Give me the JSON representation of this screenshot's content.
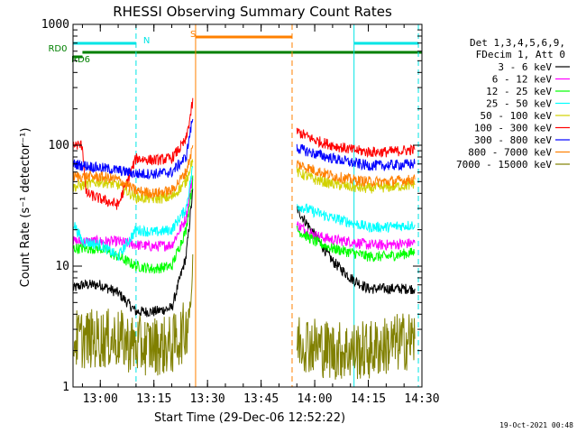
{
  "chart_data": {
    "type": "line",
    "title": "RHESSI Observing Summary Count Rates",
    "xlabel": "Start Time (29-Dec-06 12:52:22)",
    "ylabel": "Count Rate (s⁻¹ detector⁻¹)",
    "y_scale": "log",
    "ylim": [
      1,
      1000
    ],
    "xlim": [
      "12:52:22",
      "14:30:00"
    ],
    "x_ticks": [
      "13:00",
      "13:15",
      "13:30",
      "13:45",
      "14:00",
      "14:15",
      "14:30"
    ],
    "y_ticks": [
      "1",
      "10",
      "100",
      "1000"
    ],
    "legend_header": [
      "Det 1,3,4,5,6,9,",
      "FDecim 1, Att 0"
    ],
    "legend_position": "right",
    "timestamp": "19-Oct-2021 00:48",
    "flags": [
      {
        "label": "RD6",
        "color": "#008000",
        "start": "12:52:22",
        "end": "12:55:00"
      },
      {
        "label": "RD0",
        "color": "#008000",
        "start": "12:55:00",
        "end": "14:30:00"
      },
      {
        "label": "N",
        "color": "#00e5e5",
        "start": "12:52:22",
        "end": "13:10:00"
      },
      {
        "label": "N",
        "color": "#00e5e5",
        "start": "14:11:00",
        "end": "14:29:00"
      },
      {
        "label": "S",
        "color": "#ff8000",
        "start": "13:26:40",
        "end": "13:53:40"
      }
    ],
    "markers": [
      {
        "time": "12:52:22",
        "color": "#00e5e5",
        "style": "solid"
      },
      {
        "time": "13:10:00",
        "color": "#00e5e5",
        "style": "dashed"
      },
      {
        "time": "13:26:40",
        "color": "#ff8000",
        "style": "solid"
      },
      {
        "time": "13:53:40",
        "color": "#ff8000",
        "style": "dashed"
      },
      {
        "time": "14:11:00",
        "color": "#00e5e5",
        "style": "solid"
      },
      {
        "time": "14:29:00",
        "color": "#00e5e5",
        "style": "dashed"
      }
    ],
    "series": [
      {
        "name": "3 - 6 keV",
        "color": "#000000",
        "points": [
          [
            "12:52:22",
            6.5
          ],
          [
            "12:55:00",
            7
          ],
          [
            "13:00:00",
            7
          ],
          [
            "13:05:00",
            6
          ],
          [
            "13:10:00",
            4.2
          ],
          [
            "13:15:00",
            4.2
          ],
          [
            "13:20:00",
            4.5
          ],
          [
            "13:24:00",
            12
          ],
          [
            "13:26:00",
            45
          ],
          [
            "13:55:00",
            30
          ],
          [
            "14:00:00",
            18
          ],
          [
            "14:05:00",
            11
          ],
          [
            "14:10:00",
            8
          ],
          [
            "14:15:00",
            6.5
          ],
          [
            "14:20:00",
            6.5
          ],
          [
            "14:28:00",
            6.5
          ]
        ]
      },
      {
        "name": "6 - 12 keV",
        "color": "#ff00ff",
        "points": [
          [
            "12:52:22",
            16
          ],
          [
            "13:00:00",
            16
          ],
          [
            "13:05:00",
            16
          ],
          [
            "13:10:00",
            15
          ],
          [
            "13:15:00",
            14.5
          ],
          [
            "13:20:00",
            15
          ],
          [
            "13:24:00",
            25
          ],
          [
            "13:26:00",
            60
          ],
          [
            "13:55:00",
            22
          ],
          [
            "14:00:00",
            18
          ],
          [
            "14:05:00",
            16.5
          ],
          [
            "14:10:00",
            16
          ],
          [
            "14:15:00",
            15
          ],
          [
            "14:20:00",
            15
          ],
          [
            "14:28:00",
            15.5
          ]
        ]
      },
      {
        "name": "12 - 25 keV",
        "color": "#00ff00",
        "points": [
          [
            "12:52:22",
            14
          ],
          [
            "13:00:00",
            14
          ],
          [
            "13:05:00",
            12
          ],
          [
            "13:10:00",
            10
          ],
          [
            "13:15:00",
            9.5
          ],
          [
            "13:20:00",
            10
          ],
          [
            "13:24:00",
            20
          ],
          [
            "13:26:00",
            55
          ],
          [
            "13:55:00",
            20
          ],
          [
            "14:00:00",
            16
          ],
          [
            "14:05:00",
            14
          ],
          [
            "14:10:00",
            13
          ],
          [
            "14:15:00",
            12
          ],
          [
            "14:20:00",
            12
          ],
          [
            "14:28:00",
            13
          ]
        ]
      },
      {
        "name": "25 - 50 keV",
        "color": "#00ffff",
        "points": [
          [
            "12:52:22",
            23
          ],
          [
            "12:55:00",
            16
          ],
          [
            "13:00:00",
            15
          ],
          [
            "13:05:00",
            12
          ],
          [
            "13:10:00",
            20
          ],
          [
            "13:15:00",
            19
          ],
          [
            "13:20:00",
            20
          ],
          [
            "13:24:00",
            30
          ],
          [
            "13:26:00",
            70
          ],
          [
            "13:55:00",
            32
          ],
          [
            "14:00:00",
            28
          ],
          [
            "14:05:00",
            25
          ],
          [
            "14:10:00",
            23
          ],
          [
            "14:15:00",
            21
          ],
          [
            "14:20:00",
            21
          ],
          [
            "14:28:00",
            22
          ]
        ]
      },
      {
        "name": "50 - 100 keV",
        "color": "#d2d200",
        "points": [
          [
            "12:52:22",
            45
          ],
          [
            "13:00:00",
            50
          ],
          [
            "13:05:00",
            47
          ],
          [
            "13:10:00",
            37
          ],
          [
            "13:15:00",
            36
          ],
          [
            "13:20:00",
            37
          ],
          [
            "13:24:00",
            50
          ],
          [
            "13:26:00",
            80
          ],
          [
            "13:55:00",
            60
          ],
          [
            "14:00:00",
            52
          ],
          [
            "14:05:00",
            48
          ],
          [
            "14:10:00",
            45
          ],
          [
            "14:15:00",
            44
          ],
          [
            "14:20:00",
            45
          ],
          [
            "14:28:00",
            47
          ]
        ]
      },
      {
        "name": "100 - 300 keV",
        "color": "#ff0000",
        "points": [
          [
            "12:52:22",
            100
          ],
          [
            "12:55:00",
            100
          ],
          [
            "12:56:00",
            40
          ],
          [
            "13:00:00",
            36
          ],
          [
            "13:05:00",
            32
          ],
          [
            "13:10:00",
            78
          ],
          [
            "13:15:00",
            75
          ],
          [
            "13:20:00",
            78
          ],
          [
            "13:24:00",
            110
          ],
          [
            "13:26:00",
            240
          ],
          [
            "13:55:00",
            130
          ],
          [
            "14:00:00",
            110
          ],
          [
            "14:05:00",
            100
          ],
          [
            "14:10:00",
            92
          ],
          [
            "14:15:00",
            88
          ],
          [
            "14:20:00",
            88
          ],
          [
            "14:28:00",
            92
          ]
        ]
      },
      {
        "name": "300 - 800 keV",
        "color": "#0000ff",
        "points": [
          [
            "12:52:22",
            70
          ],
          [
            "13:00:00",
            65
          ],
          [
            "13:05:00",
            62
          ],
          [
            "13:10:00",
            58
          ],
          [
            "13:15:00",
            58
          ],
          [
            "13:20:00",
            60
          ],
          [
            "13:24:00",
            80
          ],
          [
            "13:26:00",
            180
          ],
          [
            "13:55:00",
            95
          ],
          [
            "14:00:00",
            85
          ],
          [
            "14:05:00",
            78
          ],
          [
            "14:10:00",
            72
          ],
          [
            "14:15:00",
            68
          ],
          [
            "14:20:00",
            68
          ],
          [
            "14:28:00",
            70
          ]
        ]
      },
      {
        "name": "800 - 7000 keV",
        "color": "#ff8000",
        "points": [
          [
            "12:52:22",
            55
          ],
          [
            "13:00:00",
            55
          ],
          [
            "13:05:00",
            52
          ],
          [
            "13:10:00",
            42
          ],
          [
            "13:15:00",
            40
          ],
          [
            "13:20:00",
            42
          ],
          [
            "13:24:00",
            60
          ],
          [
            "13:26:00",
            100
          ],
          [
            "13:55:00",
            70
          ],
          [
            "14:00:00",
            62
          ],
          [
            "14:05:00",
            56
          ],
          [
            "14:10:00",
            52
          ],
          [
            "14:15:00",
            50
          ],
          [
            "14:20:00",
            50
          ],
          [
            "14:28:00",
            52
          ]
        ]
      },
      {
        "name": "7000 - 15000 keV",
        "color": "#808000",
        "points": [
          [
            "12:52:22",
            2.5
          ],
          [
            "13:00:00",
            2.5
          ],
          [
            "13:05:00",
            2.5
          ],
          [
            "13:10:00",
            2.2
          ],
          [
            "13:15:00",
            2.2
          ],
          [
            "13:20:00",
            2.2
          ],
          [
            "13:24:00",
            3
          ],
          [
            "13:26:00",
            8
          ],
          [
            "13:55:00",
            2.5
          ],
          [
            "14:00:00",
            2.2
          ],
          [
            "14:05:00",
            2
          ],
          [
            "14:10:00",
            2
          ],
          [
            "14:15:00",
            2
          ],
          [
            "14:20:00",
            2.2
          ],
          [
            "14:28:00",
            2.5
          ]
        ]
      }
    ]
  }
}
